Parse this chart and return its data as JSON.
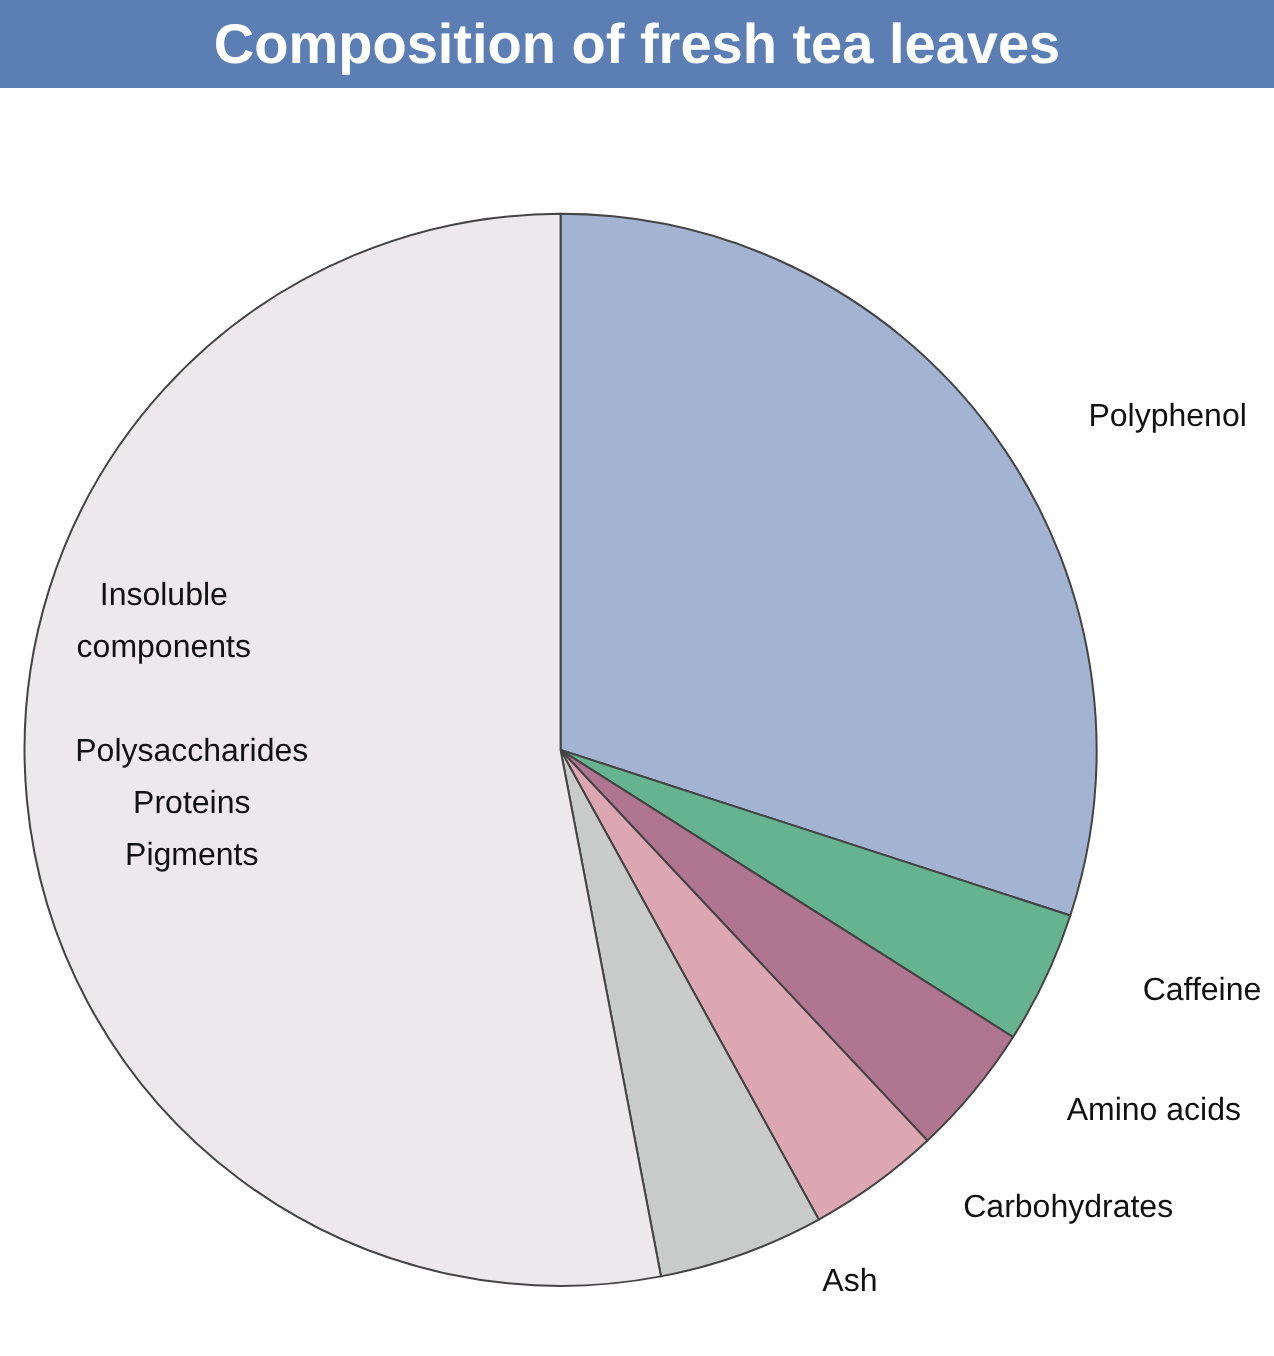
{
  "chart_data": {
    "type": "pie",
    "title": "Composition of fresh tea leaves",
    "categories": [
      "Polyphenol",
      "Caffeine",
      "Amino acids",
      "Carbohydrates",
      "Ash",
      "Insoluble components"
    ],
    "values": [
      30,
      4,
      4,
      4,
      5,
      53
    ],
    "colors": [
      "#a3b4d3",
      "#66b48f",
      "#b07690",
      "#dca6b3",
      "#c9cbcb",
      "#ede8ec"
    ],
    "annotations": [
      "Polysaccharides\nProteins\nPigments"
    ]
  }
}
